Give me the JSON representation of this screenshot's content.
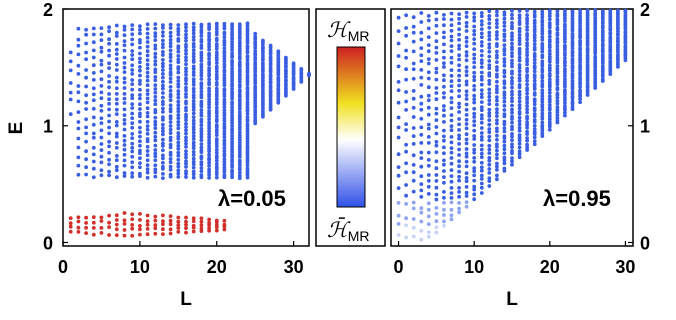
{
  "chart_data": [
    {
      "type": "scatter",
      "xlabel": "L",
      "ylabel": "E",
      "xlim": [
        0,
        32
      ],
      "ylim": [
        -0.03,
        2.0
      ],
      "xticks": [
        "0",
        "10",
        "20",
        "30"
      ],
      "yticks": [
        "0",
        "1",
        "2"
      ],
      "annotation": "λ=0.05",
      "colorbar": "shared, between panels",
      "series": [
        {
          "color": "#3a5ee0",
          "bands": [
            {
              "L_from": 1,
              "L_to": 32,
              "E_min": 0.55,
              "E_max": 1.89
            }
          ]
        },
        {
          "color": "#d2302a",
          "bands": [
            {
              "L_from": 1,
              "L_to": 21,
              "E_min": 0.04,
              "E_max": 0.27
            }
          ]
        }
      ]
    },
    {
      "type": "scatter",
      "xlabel": "L",
      "ylabel": "E",
      "xlim": [
        -1,
        31
      ],
      "ylim": [
        -0.03,
        2.0
      ],
      "xticks": [
        "0",
        "10",
        "20",
        "30"
      ],
      "yticks": [
        "0",
        "1",
        "2"
      ],
      "annotation": "λ=0.95",
      "series": [
        {
          "color": "#3a5ee0",
          "bands": [
            {
              "L_from": 0,
              "L_to": 30,
              "E_min": 0.02,
              "E_max": 2.0
            }
          ]
        }
      ]
    }
  ],
  "colorbar": {
    "top_label": "ℋ",
    "top_sub": "MR",
    "bottom_label": "ℋ̄",
    "bottom_sub": "MR",
    "colors": [
      "#cc2020",
      "#f0e020",
      "#ffffff",
      "#3050e8"
    ]
  }
}
